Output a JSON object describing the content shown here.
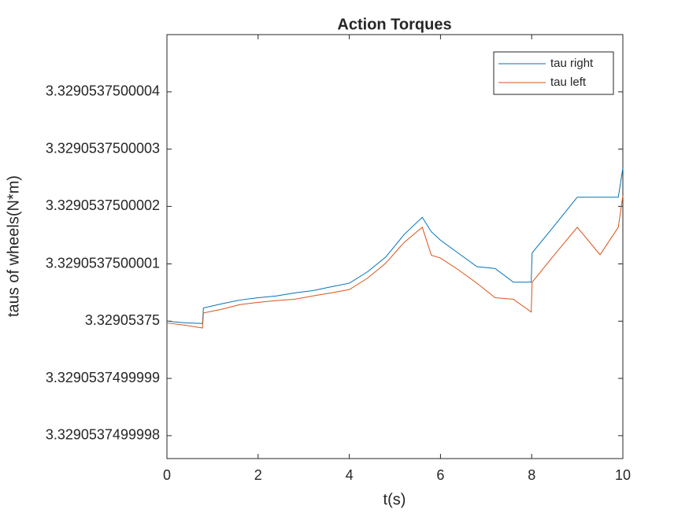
{
  "chart_data": {
    "type": "line",
    "title": "Action Torques",
    "xlabel": "t(s)",
    "ylabel": "taus of wheels(N*m)",
    "x": [
      0,
      0.4,
      0.78,
      0.8,
      1.2,
      1.6,
      2,
      2.4,
      2.8,
      3.2,
      3.6,
      4,
      4.4,
      4.8,
      5.2,
      5.6,
      5.8,
      6,
      6.4,
      6.8,
      7.2,
      7.6,
      7.99,
      8.01,
      8.5,
      9,
      9.5,
      9.9,
      10
    ],
    "series": [
      {
        "name": "tau right",
        "color": "#0072bd",
        "values": [
          3.32905375,
          3.329053749999997,
          3.329053749999996,
          3.329053750000023,
          3.32905375000003,
          3.329053750000037,
          3.329053750000041,
          3.329053750000044,
          3.329053750000049,
          3.329053750000053,
          3.32905375000006,
          3.329053750000066,
          3.329053750000086,
          3.329053750000112,
          3.329053750000151,
          3.329053750000181,
          3.329053750000156,
          3.329053750000141,
          3.329053750000118,
          3.329053750000095,
          3.329053750000092,
          3.329053750000068,
          3.329053750000068,
          3.329053750000119,
          3.329053750000167,
          3.329053750000216,
          3.329053750000216,
          3.329053750000216,
          3.329053750000267
        ]
      },
      {
        "name": "tau left",
        "color": "#d95319",
        "values": [
          3.329053749999997,
          3.329053749999993,
          3.329053749999988,
          3.329053750000014,
          3.329053750000021,
          3.329053750000029,
          3.329053750000033,
          3.329053750000036,
          3.329053750000038,
          3.329053750000044,
          3.329053750000049,
          3.329053750000055,
          3.329053750000075,
          3.329053750000101,
          3.329053750000137,
          3.329053750000164,
          3.329053750000115,
          3.32905375000011,
          3.329053750000089,
          3.329053750000066,
          3.329053750000041,
          3.329053750000038,
          3.329053750000016,
          3.329053750000068,
          3.329053750000116,
          3.329053750000164,
          3.329053750000116,
          3.329053750000164,
          3.329053750000219
        ]
      }
    ],
    "xlim": [
      0,
      10
    ],
    "xticks": [
      0,
      2,
      4,
      6,
      8,
      10
    ],
    "ylim": [
      3.32905374999976,
      3.3290537500005
    ],
    "yticks": [
      3.3290537499998,
      3.3290537499999,
      3.32905375,
      3.3290537500001,
      3.3290537500002,
      3.3290537500003,
      3.3290537500004
    ],
    "legend": "upper right"
  }
}
